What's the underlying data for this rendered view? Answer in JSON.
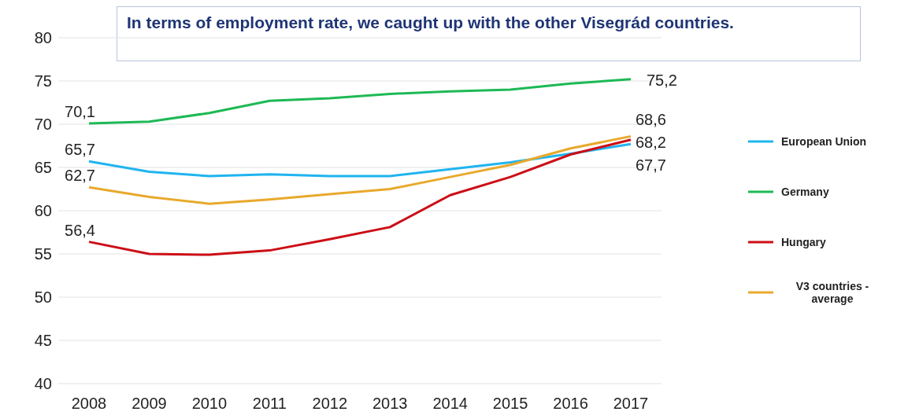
{
  "chart_data": {
    "type": "line",
    "title": "In terms of employment rate, we caught up with the other Visegrád countries.",
    "categories": [
      "2008",
      "2009",
      "2010",
      "2011",
      "2012",
      "2013",
      "2014",
      "2015",
      "2016",
      "2017"
    ],
    "series": [
      {
        "name": "European Union",
        "color": "#1fb4ef",
        "values": [
          65.7,
          64.5,
          64.0,
          64.2,
          64.0,
          64.0,
          64.8,
          65.6,
          66.6,
          67.7
        ],
        "value_labels": [
          "65,7",
          null,
          null,
          null,
          null,
          null,
          null,
          null,
          null,
          "67,7"
        ]
      },
      {
        "name": "Germany",
        "color": "#1db954",
        "values": [
          70.1,
          70.3,
          71.3,
          72.7,
          73.0,
          73.5,
          73.8,
          74.0,
          74.7,
          75.2
        ],
        "value_labels": [
          "70,1",
          null,
          null,
          null,
          null,
          null,
          null,
          null,
          null,
          "75,2"
        ]
      },
      {
        "name": "Hungary",
        "color": "#cc0e16",
        "values": [
          56.4,
          55.0,
          54.9,
          55.4,
          56.7,
          58.1,
          61.8,
          63.9,
          66.5,
          68.2
        ],
        "value_labels": [
          "56,4",
          null,
          null,
          null,
          null,
          null,
          null,
          null,
          null,
          "68,2"
        ]
      },
      {
        "name": "V3 countries - average",
        "color": "#e8a92c",
        "values": [
          62.7,
          61.6,
          60.8,
          61.3,
          61.9,
          62.5,
          63.9,
          65.3,
          67.2,
          68.6
        ],
        "value_labels": [
          "62,7",
          null,
          null,
          null,
          null,
          null,
          null,
          null,
          null,
          "68,6"
        ]
      }
    ],
    "ylim": [
      40,
      80
    ],
    "yticks": [
      40,
      45,
      50,
      55,
      60,
      65,
      70,
      75,
      80
    ],
    "grid": "y",
    "legend": "right",
    "marker": "none",
    "line_style": "solid"
  }
}
